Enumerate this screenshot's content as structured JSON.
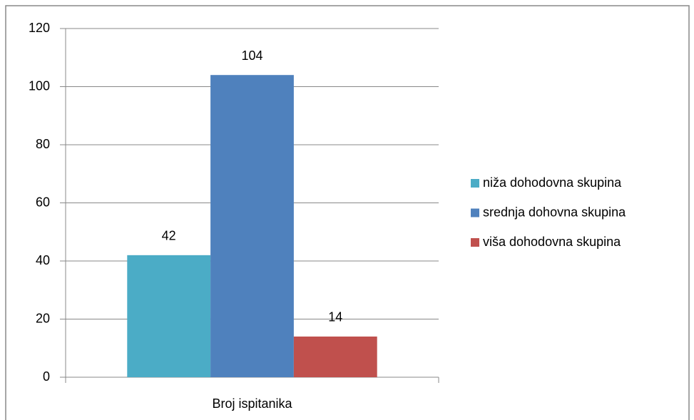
{
  "chart_data": {
    "type": "bar",
    "categories": [
      "Broj ispitanika"
    ],
    "series": [
      {
        "name": "niža dohodovna skupina",
        "color": "#4bacc6",
        "values": [
          42
        ]
      },
      {
        "name": "srednja dohovna skupina",
        "color": "#4f81bd",
        "values": [
          104
        ]
      },
      {
        "name": "viša dohodovna skupina",
        "color": "#c0504d",
        "values": [
          14
        ]
      }
    ],
    "ylim": [
      0,
      120
    ],
    "yticks": [
      0,
      20,
      40,
      60,
      80,
      100,
      120
    ],
    "grid": true,
    "legend": "right"
  }
}
